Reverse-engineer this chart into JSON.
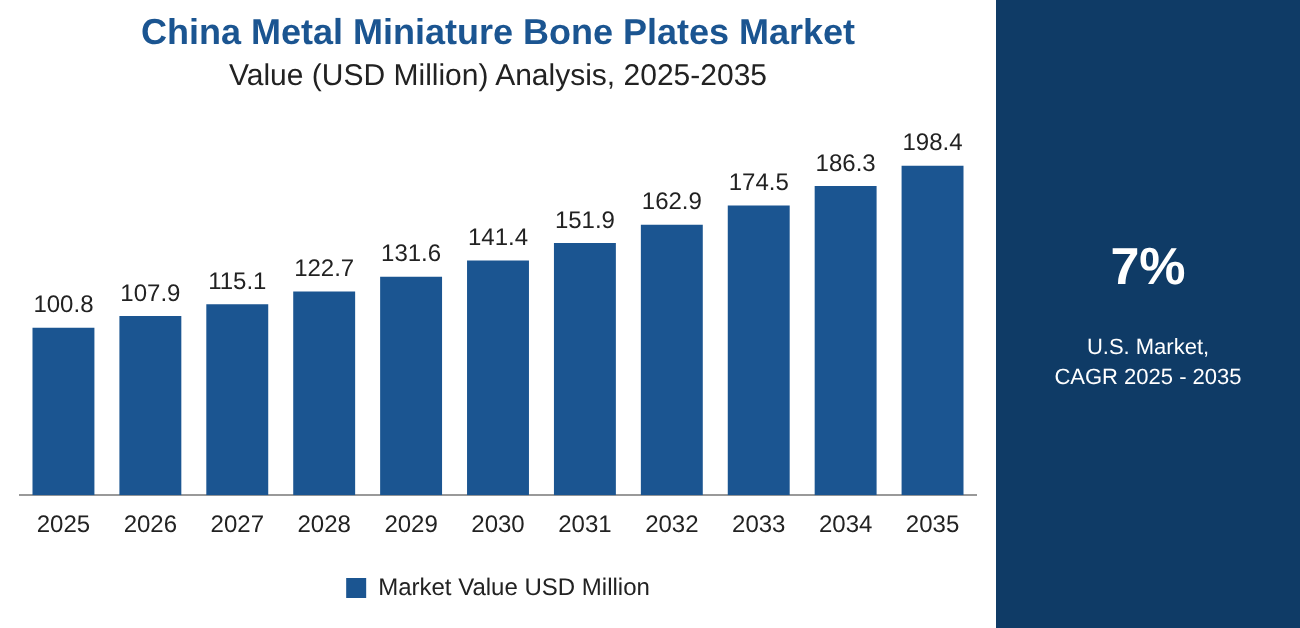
{
  "chart_data": {
    "type": "bar",
    "title": "China Metal Miniature Bone Plates Market",
    "subtitle": "Value (USD Million) Analysis, 2025-2035",
    "categories": [
      "2025",
      "2026",
      "2027",
      "2028",
      "2029",
      "2030",
      "2031",
      "2032",
      "2033",
      "2034",
      "2035"
    ],
    "series": [
      {
        "name": "Market Value USD Million",
        "color": "#1b5591",
        "values": [
          100.8,
          107.9,
          115.1,
          122.7,
          131.6,
          141.4,
          151.9,
          162.9,
          174.5,
          186.3,
          198.4
        ]
      }
    ],
    "data_labels": true,
    "legend": "bottom",
    "grid": false,
    "annotations": [
      "7%",
      "U.S. Market,\nCAGR 2025 - 2035"
    ]
  }
}
